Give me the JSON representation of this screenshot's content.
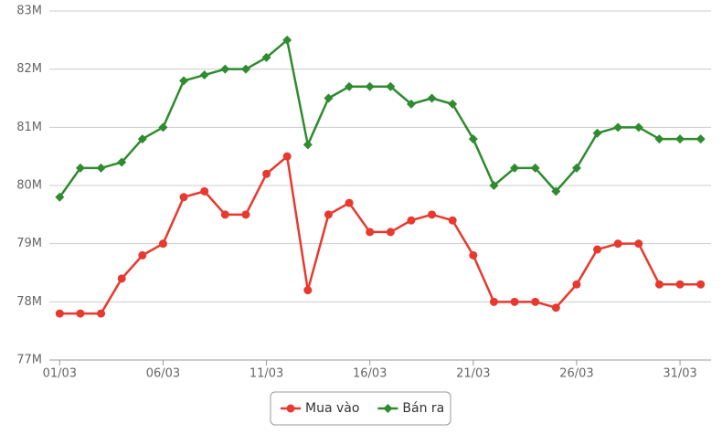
{
  "chart_data": {
    "type": "line",
    "categories": [
      "01/03",
      null,
      null,
      null,
      null,
      "06/03",
      null,
      null,
      null,
      null,
      "11/03",
      null,
      null,
      null,
      null,
      "16/03",
      null,
      null,
      null,
      null,
      "21/03",
      null,
      null,
      null,
      null,
      "26/03",
      null,
      null,
      null,
      null,
      "31/03",
      null
    ],
    "series": [
      {
        "name": "Mua vào",
        "color": "#e8392e",
        "marker": "circle",
        "values": [
          77.8,
          77.8,
          77.8,
          78.4,
          78.8,
          79.0,
          79.8,
          79.9,
          79.5,
          79.5,
          80.2,
          80.5,
          78.2,
          79.5,
          79.7,
          79.2,
          79.2,
          79.4,
          79.5,
          79.4,
          78.8,
          78.0,
          78.0,
          78.0,
          77.9,
          78.3,
          78.9,
          79.0,
          79.0,
          78.3,
          78.3,
          78.3
        ]
      },
      {
        "name": "Bán ra",
        "color": "#2e8b2e",
        "marker": "diamond",
        "values": [
          79.8,
          80.3,
          80.3,
          80.4,
          80.8,
          81.0,
          81.8,
          81.9,
          82.0,
          82.0,
          82.2,
          82.5,
          80.7,
          81.5,
          81.7,
          81.7,
          81.7,
          81.4,
          81.5,
          81.4,
          80.8,
          80.0,
          80.3,
          80.3,
          79.9,
          80.3,
          80.9,
          81.0,
          81.0,
          80.8,
          80.8,
          80.8
        ]
      }
    ],
    "ylim": [
      77,
      83
    ],
    "yticks": [
      {
        "value": 77,
        "label": "77M"
      },
      {
        "value": 78,
        "label": "78M"
      },
      {
        "value": 79,
        "label": "79M"
      },
      {
        "value": 80,
        "label": "80M"
      },
      {
        "value": 81,
        "label": "81M"
      },
      {
        "value": 82,
        "label": "82M"
      },
      {
        "value": 83,
        "label": "83M"
      }
    ],
    "grid": true,
    "legend": "bottom"
  }
}
